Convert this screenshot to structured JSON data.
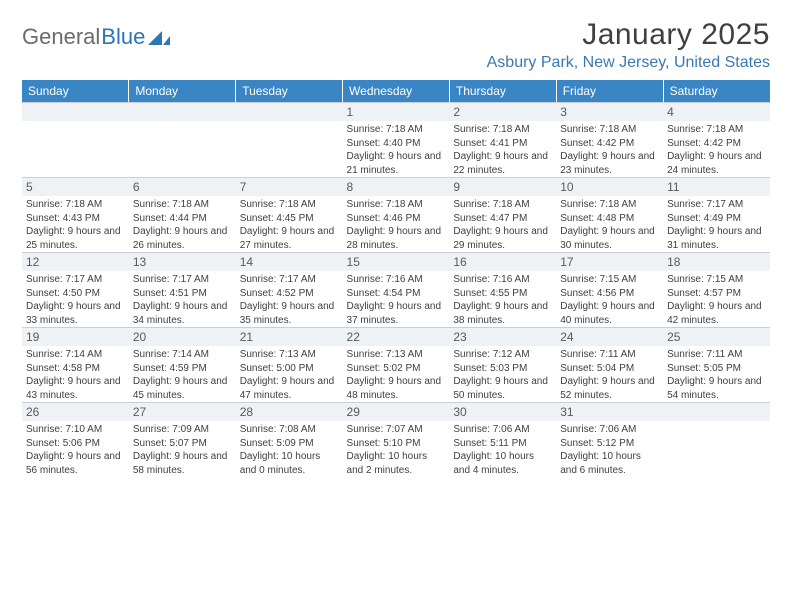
{
  "brand": {
    "part1": "General",
    "part2": "Blue"
  },
  "title": "January 2025",
  "location": "Asbury Park, New Jersey, United States",
  "colors": {
    "header_bg": "#3a85c4",
    "header_text": "#ffffff",
    "daynum_bg": "#eef2f5",
    "location_color": "#3a79b0",
    "body_text": "#3f3f3f"
  },
  "weekdays": [
    "Sunday",
    "Monday",
    "Tuesday",
    "Wednesday",
    "Thursday",
    "Friday",
    "Saturday"
  ],
  "weeks": [
    [
      null,
      null,
      null,
      {
        "d": "1",
        "sr": "7:18 AM",
        "ss": "4:40 PM",
        "dl": "9 hours and 21 minutes."
      },
      {
        "d": "2",
        "sr": "7:18 AM",
        "ss": "4:41 PM",
        "dl": "9 hours and 22 minutes."
      },
      {
        "d": "3",
        "sr": "7:18 AM",
        "ss": "4:42 PM",
        "dl": "9 hours and 23 minutes."
      },
      {
        "d": "4",
        "sr": "7:18 AM",
        "ss": "4:42 PM",
        "dl": "9 hours and 24 minutes."
      }
    ],
    [
      {
        "d": "5",
        "sr": "7:18 AM",
        "ss": "4:43 PM",
        "dl": "9 hours and 25 minutes."
      },
      {
        "d": "6",
        "sr": "7:18 AM",
        "ss": "4:44 PM",
        "dl": "9 hours and 26 minutes."
      },
      {
        "d": "7",
        "sr": "7:18 AM",
        "ss": "4:45 PM",
        "dl": "9 hours and 27 minutes."
      },
      {
        "d": "8",
        "sr": "7:18 AM",
        "ss": "4:46 PM",
        "dl": "9 hours and 28 minutes."
      },
      {
        "d": "9",
        "sr": "7:18 AM",
        "ss": "4:47 PM",
        "dl": "9 hours and 29 minutes."
      },
      {
        "d": "10",
        "sr": "7:18 AM",
        "ss": "4:48 PM",
        "dl": "9 hours and 30 minutes."
      },
      {
        "d": "11",
        "sr": "7:17 AM",
        "ss": "4:49 PM",
        "dl": "9 hours and 31 minutes."
      }
    ],
    [
      {
        "d": "12",
        "sr": "7:17 AM",
        "ss": "4:50 PM",
        "dl": "9 hours and 33 minutes."
      },
      {
        "d": "13",
        "sr": "7:17 AM",
        "ss": "4:51 PM",
        "dl": "9 hours and 34 minutes."
      },
      {
        "d": "14",
        "sr": "7:17 AM",
        "ss": "4:52 PM",
        "dl": "9 hours and 35 minutes."
      },
      {
        "d": "15",
        "sr": "7:16 AM",
        "ss": "4:54 PM",
        "dl": "9 hours and 37 minutes."
      },
      {
        "d": "16",
        "sr": "7:16 AM",
        "ss": "4:55 PM",
        "dl": "9 hours and 38 minutes."
      },
      {
        "d": "17",
        "sr": "7:15 AM",
        "ss": "4:56 PM",
        "dl": "9 hours and 40 minutes."
      },
      {
        "d": "18",
        "sr": "7:15 AM",
        "ss": "4:57 PM",
        "dl": "9 hours and 42 minutes."
      }
    ],
    [
      {
        "d": "19",
        "sr": "7:14 AM",
        "ss": "4:58 PM",
        "dl": "9 hours and 43 minutes."
      },
      {
        "d": "20",
        "sr": "7:14 AM",
        "ss": "4:59 PM",
        "dl": "9 hours and 45 minutes."
      },
      {
        "d": "21",
        "sr": "7:13 AM",
        "ss": "5:00 PM",
        "dl": "9 hours and 47 minutes."
      },
      {
        "d": "22",
        "sr": "7:13 AM",
        "ss": "5:02 PM",
        "dl": "9 hours and 48 minutes."
      },
      {
        "d": "23",
        "sr": "7:12 AM",
        "ss": "5:03 PM",
        "dl": "9 hours and 50 minutes."
      },
      {
        "d": "24",
        "sr": "7:11 AM",
        "ss": "5:04 PM",
        "dl": "9 hours and 52 minutes."
      },
      {
        "d": "25",
        "sr": "7:11 AM",
        "ss": "5:05 PM",
        "dl": "9 hours and 54 minutes."
      }
    ],
    [
      {
        "d": "26",
        "sr": "7:10 AM",
        "ss": "5:06 PM",
        "dl": "9 hours and 56 minutes."
      },
      {
        "d": "27",
        "sr": "7:09 AM",
        "ss": "5:07 PM",
        "dl": "9 hours and 58 minutes."
      },
      {
        "d": "28",
        "sr": "7:08 AM",
        "ss": "5:09 PM",
        "dl": "10 hours and 0 minutes."
      },
      {
        "d": "29",
        "sr": "7:07 AM",
        "ss": "5:10 PM",
        "dl": "10 hours and 2 minutes."
      },
      {
        "d": "30",
        "sr": "7:06 AM",
        "ss": "5:11 PM",
        "dl": "10 hours and 4 minutes."
      },
      {
        "d": "31",
        "sr": "7:06 AM",
        "ss": "5:12 PM",
        "dl": "10 hours and 6 minutes."
      },
      null
    ]
  ],
  "labels": {
    "sunrise": "Sunrise:",
    "sunset": "Sunset:",
    "daylight": "Daylight:"
  }
}
